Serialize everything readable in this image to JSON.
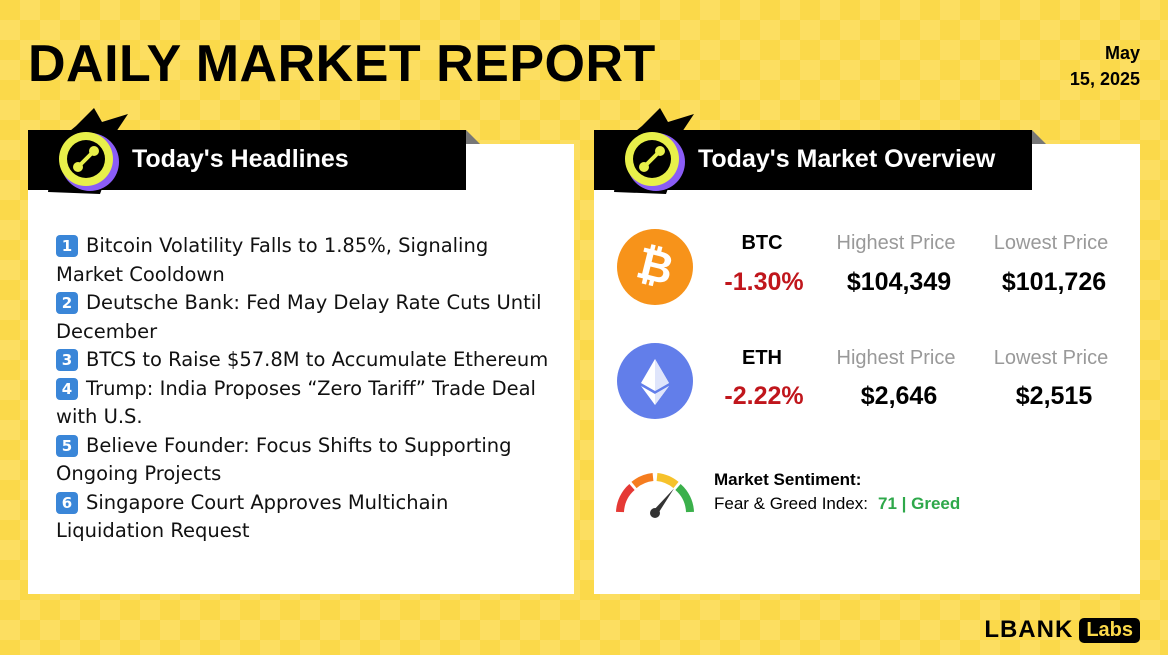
{
  "header": {
    "title": "DAILY MARKET REPORT",
    "date_line1": "May",
    "date_line2": "15, 2025"
  },
  "headlines_panel": {
    "title": "Today's Headlines",
    "items": [
      {
        "num": "1",
        "line1": "Bitcoin Volatility Falls to 1.85%, Signaling",
        "line2": "Market Cooldown"
      },
      {
        "num": "2",
        "line1": "Deutsche Bank: Fed May Delay Rate Cuts Until",
        "line2": "December"
      },
      {
        "num": "3",
        "line1": "BTCS to Raise $57.8M to Accumulate Ethereum",
        "line2": ""
      },
      {
        "num": "4",
        "line1": "Trump: India Proposes “Zero Tariff” Trade Deal",
        "line2": "with U.S."
      },
      {
        "num": "5",
        "line1": "Believe Founder: Focus Shifts to Supporting",
        "line2": "Ongoing Projects"
      },
      {
        "num": "6",
        "line1": "Singapore Court Approves Multichain",
        "line2": "Liquidation Request"
      }
    ]
  },
  "market_panel": {
    "title": "Today's Market Overview",
    "coins": [
      {
        "symbol": "BTC",
        "change": "-1.30%",
        "high_label": "Highest Price",
        "high": "$104,349",
        "low_label": "Lowest Price",
        "low": "$101,726",
        "icon": "bitcoin-icon"
      },
      {
        "symbol": "ETH",
        "change": "-2.22%",
        "high_label": "Highest Price",
        "high": "$2,646",
        "low_label": "Lowest Price",
        "low": "$2,515",
        "icon": "ethereum-icon"
      }
    ],
    "sentiment": {
      "title": "Market Sentiment:",
      "label": "Fear & Greed Index:",
      "value": "71 | Greed",
      "index": 71
    }
  },
  "footer": {
    "logo_main": "LBANK",
    "logo_sub": "Labs"
  },
  "colors": {
    "background": "#fbd94a",
    "negative": "#c0161c",
    "greed": "#2ea84a",
    "btc": "#f7931a",
    "eth": "#627eea"
  }
}
